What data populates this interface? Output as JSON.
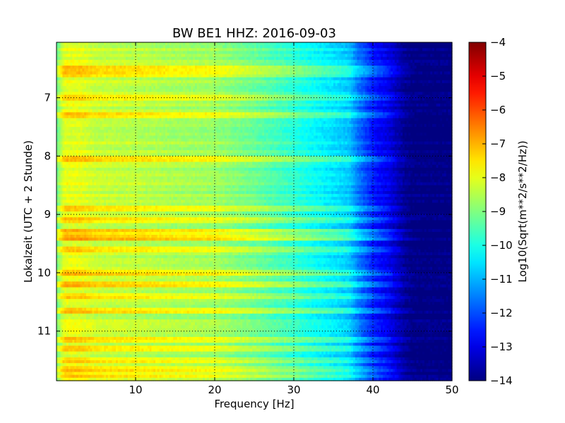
{
  "chart_data": {
    "type": "heatmap",
    "title": "BW BE1 HHZ: 2016-09-03",
    "xlabel": "Frequency [Hz]",
    "ylabel": "Lokalzeit (UTC + 2 Stunde)",
    "xlim": [
      0,
      50
    ],
    "ylim": [
      6.05,
      11.85
    ],
    "y_inverted": true,
    "x_ticks": [
      10,
      20,
      30,
      40,
      50
    ],
    "x_tick_labels": [
      "10",
      "20",
      "30",
      "40",
      "50"
    ],
    "y_ticks": [
      7,
      8,
      9,
      10,
      11
    ],
    "y_tick_labels": [
      "7",
      "8",
      "9",
      "10",
      "11"
    ],
    "grid": true,
    "colormap": "jet",
    "colorbar": {
      "label": "Log10(Sqrt(m**2/s**2/Hz))",
      "range": [
        -14,
        -4
      ],
      "ticks": [
        -4,
        -5,
        -6,
        -7,
        -8,
        -9,
        -10,
        -11,
        -12,
        -13,
        -14
      ],
      "tick_labels": [
        "−4",
        "−5",
        "−6",
        "−7",
        "−8",
        "−9",
        "−10",
        "−11",
        "−12",
        "−13",
        "−14"
      ]
    },
    "spectrum_profile": {
      "frequency_hz": [
        0,
        1,
        3,
        5,
        10,
        15,
        20,
        25,
        30,
        32,
        35,
        37,
        38,
        40,
        42,
        44,
        45,
        47,
        50
      ],
      "log_psd": [
        -9.2,
        -8.0,
        -8.0,
        -8.3,
        -8.4,
        -8.6,
        -8.7,
        -9.2,
        -9.8,
        -10.1,
        -10.5,
        -10.8,
        -11.5,
        -12.5,
        -13.0,
        -13.8,
        -14.0,
        -14.0,
        -14.0
      ]
    },
    "high_noise_bands": [
      {
        "time": 6.5,
        "delta": 1.0
      },
      {
        "time": 6.6,
        "delta": 0.8
      },
      {
        "time": 7.0,
        "delta": 0.6
      },
      {
        "time": 7.3,
        "delta": 0.9
      },
      {
        "time": 8.05,
        "delta": 1.0
      },
      {
        "time": 8.9,
        "delta": 1.0
      },
      {
        "time": 9.1,
        "delta": 0.8
      },
      {
        "time": 9.3,
        "delta": 1.0
      },
      {
        "time": 9.4,
        "delta": 1.2
      },
      {
        "time": 9.6,
        "delta": 0.8
      },
      {
        "time": 10.0,
        "delta": 1.0
      },
      {
        "time": 10.2,
        "delta": 0.9
      },
      {
        "time": 10.4,
        "delta": 0.8
      },
      {
        "time": 10.65,
        "delta": 0.8
      },
      {
        "time": 11.15,
        "delta": 0.7
      },
      {
        "time": 11.3,
        "delta": 0.8
      },
      {
        "time": 11.5,
        "delta": 0.7
      },
      {
        "time": 11.65,
        "delta": 0.8
      },
      {
        "time": 11.75,
        "delta": 0.7
      }
    ]
  }
}
